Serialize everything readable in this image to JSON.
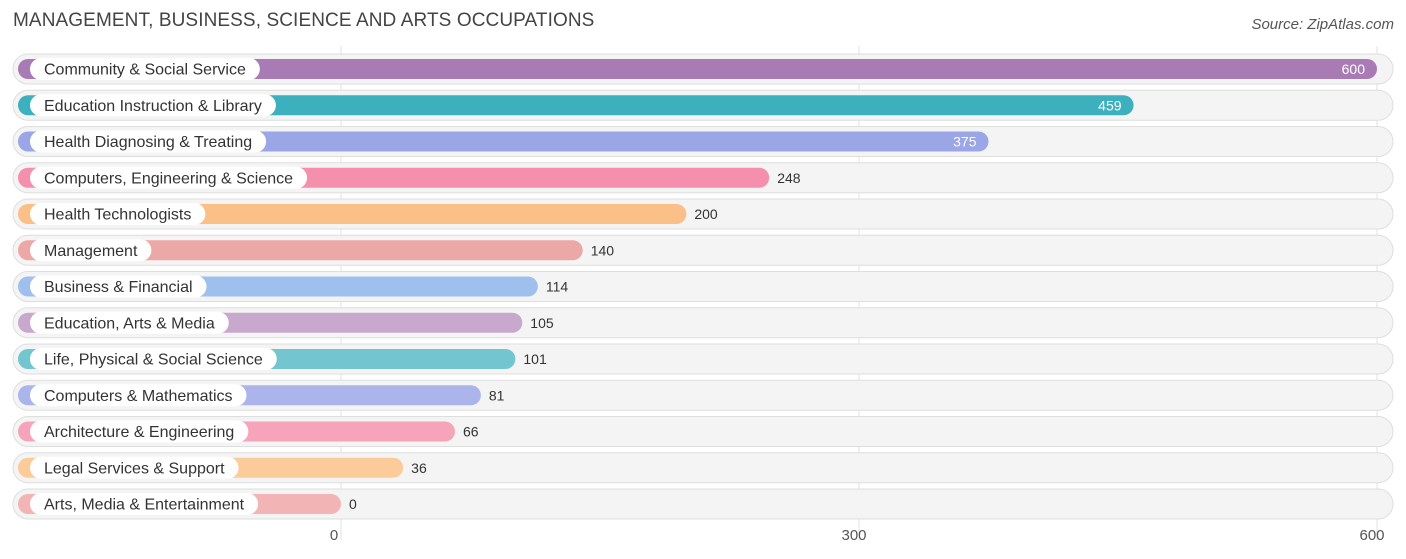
{
  "title": "MANAGEMENT, BUSINESS, SCIENCE AND ARTS OCCUPATIONS",
  "source": "Source: ZipAtlas.com",
  "chart_data": {
    "type": "bar",
    "orientation": "horizontal",
    "categories": [
      "Community & Social Service",
      "Education Instruction & Library",
      "Health Diagnosing & Treating",
      "Computers, Engineering & Science",
      "Health Technologists",
      "Management",
      "Business & Financial",
      "Education, Arts & Media",
      "Life, Physical & Social Science",
      "Computers & Mathematics",
      "Architecture & Engineering",
      "Legal Services & Support",
      "Arts, Media & Entertainment"
    ],
    "values": [
      600,
      459,
      375,
      248,
      200,
      140,
      114,
      105,
      101,
      81,
      66,
      36,
      0
    ],
    "colors": [
      "#a97bb5",
      "#3db0be",
      "#9aa6e6",
      "#f58fae",
      "#fbbf88",
      "#eba8a6",
      "#9fbfec",
      "#c9a8cd",
      "#73c6cf",
      "#acb4ec",
      "#f5a4bc",
      "#fbcb9a",
      "#f2b4b4"
    ],
    "xticks": [
      0,
      300,
      600
    ],
    "xlim": [
      0,
      600
    ],
    "grid": true
  }
}
